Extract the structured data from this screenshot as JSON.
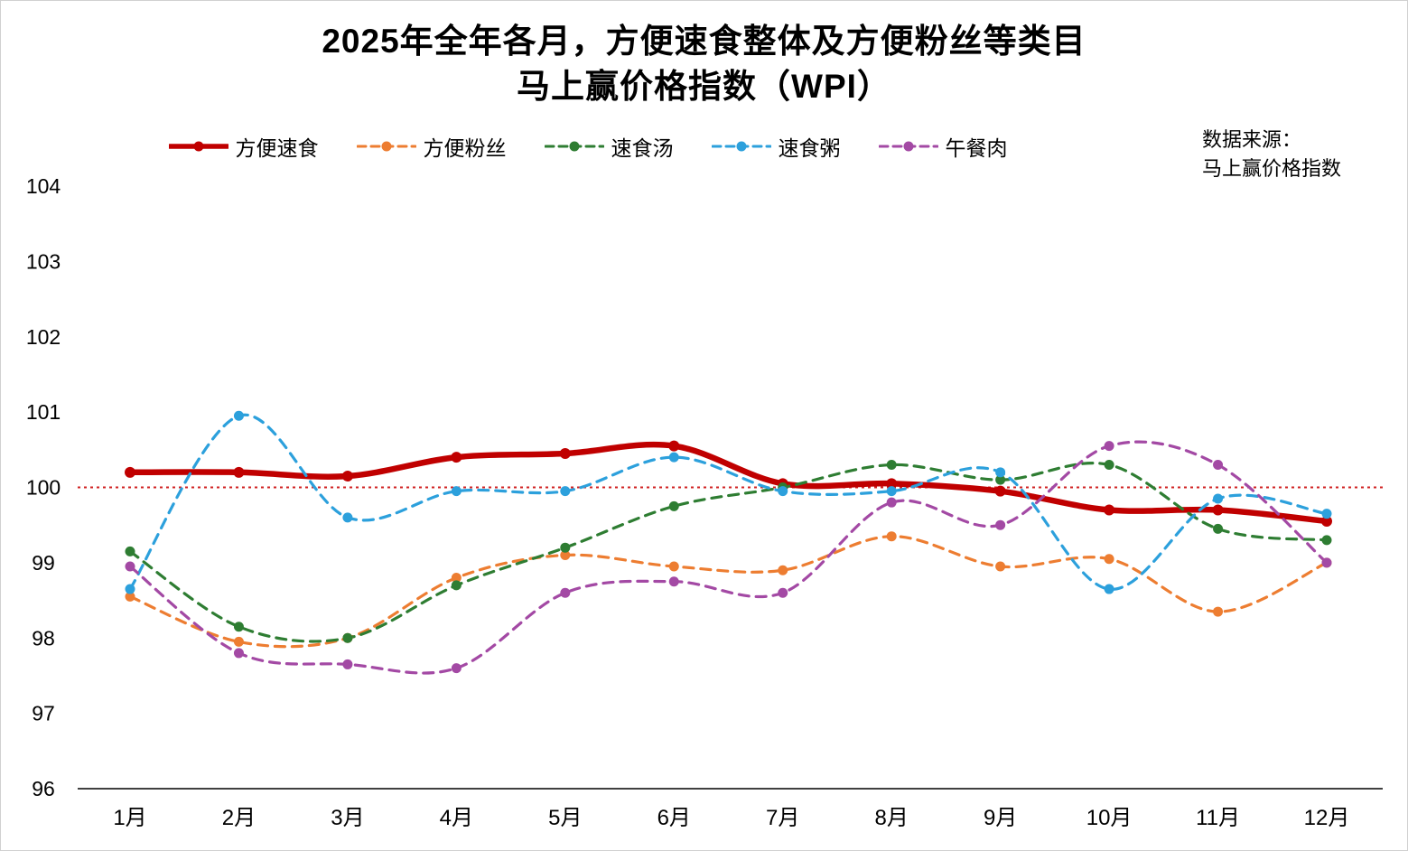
{
  "title": {
    "line1": "2025年全年各月，方便速食整体及方便粉丝等类目",
    "line2": "马上赢价格指数（WPI）"
  },
  "source": {
    "line1": "数据来源：",
    "line2": "马上赢价格指数"
  },
  "chart_data": {
    "type": "line",
    "categories": [
      "1月",
      "2月",
      "3月",
      "4月",
      "5月",
      "6月",
      "7月",
      "8月",
      "9月",
      "10月",
      "11月",
      "12月"
    ],
    "series": [
      {
        "name": "方便速食",
        "color": "#c00000",
        "style": "solid",
        "values": [
          100.2,
          100.2,
          100.15,
          100.4,
          100.45,
          100.55,
          100.05,
          100.05,
          99.95,
          99.7,
          99.7,
          99.55
        ]
      },
      {
        "name": "方便粉丝",
        "color": "#ed7d31",
        "style": "dashed",
        "values": [
          98.55,
          97.95,
          98.0,
          98.8,
          99.1,
          98.95,
          98.9,
          99.35,
          98.95,
          99.05,
          98.35,
          99.0
        ]
      },
      {
        "name": "速食汤",
        "color": "#2e7d32",
        "style": "dashed",
        "values": [
          99.15,
          98.15,
          98.0,
          98.7,
          99.2,
          99.75,
          100.0,
          100.3,
          100.1,
          100.3,
          99.45,
          99.3
        ]
      },
      {
        "name": "速食粥",
        "color": "#2ca0dc",
        "style": "dashed",
        "values": [
          98.65,
          100.95,
          99.6,
          99.95,
          99.95,
          100.4,
          99.95,
          99.95,
          100.2,
          98.65,
          99.85,
          99.65
        ]
      },
      {
        "name": "午餐肉",
        "color": "#a349a4",
        "style": "dashed",
        "values": [
          98.95,
          97.8,
          97.65,
          97.6,
          98.6,
          98.75,
          98.6,
          99.8,
          99.5,
          100.55,
          100.3,
          99.0
        ]
      }
    ],
    "reference_line": {
      "value": 100,
      "color": "#d02020",
      "style": "dotted"
    },
    "y_ticks": [
      96,
      97,
      98,
      99,
      100,
      101,
      102,
      103,
      104
    ],
    "ylim": [
      96,
      104
    ],
    "grid": false,
    "legend_position": "top-center",
    "axis_color": "#000000"
  }
}
